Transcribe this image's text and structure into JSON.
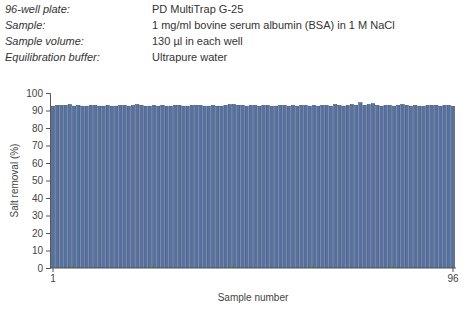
{
  "chart_data": {
    "type": "bar",
    "annotations": [
      {
        "label": "96-well plate:",
        "value": "PD MultiTrap G-25"
      },
      {
        "label": "Sample:",
        "value": "1 mg/ml bovine serum albumin (BSA) in 1 M NaCl"
      },
      {
        "label": "Sample volume:",
        "value": "130 µl in each well"
      },
      {
        "label": "Equilibration buffer:",
        "value": "Ultrapure water"
      }
    ],
    "x_label": "Sample number",
    "y_label": "Salt removal (%)",
    "categories": [
      "1",
      null,
      null,
      null,
      null,
      null,
      null,
      null,
      null,
      null,
      null,
      null,
      null,
      null,
      null,
      null,
      null,
      null,
      null,
      null,
      null,
      null,
      null,
      null,
      null,
      null,
      null,
      null,
      null,
      null,
      null,
      null,
      null,
      null,
      null,
      null,
      null,
      null,
      null,
      null,
      null,
      null,
      null,
      null,
      null,
      null,
      null,
      null,
      null,
      null,
      null,
      null,
      null,
      null,
      null,
      null,
      null,
      null,
      null,
      null,
      null,
      null,
      null,
      null,
      null,
      null,
      null,
      null,
      null,
      null,
      null,
      null,
      null,
      null,
      null,
      null,
      null,
      null,
      null,
      null,
      null,
      null,
      null,
      null,
      null,
      null,
      null,
      null,
      null,
      null,
      null,
      null,
      null,
      null,
      null,
      "96"
    ],
    "values": [
      92.5,
      93,
      93,
      93,
      93.5,
      92.5,
      93,
      92.5,
      92.5,
      93,
      93,
      92.5,
      92.5,
      93,
      92.5,
      92.5,
      93,
      93,
      92.5,
      93,
      93.5,
      93,
      92.5,
      92.5,
      93,
      92.5,
      93,
      92.5,
      92.5,
      93,
      93,
      92.5,
      92.5,
      93,
      93,
      93,
      92.5,
      92.5,
      93,
      92.5,
      92.5,
      93,
      93.5,
      93.5,
      93,
      93,
      92.5,
      93,
      93,
      92.5,
      93,
      93,
      92.5,
      92.5,
      93,
      93,
      92.5,
      93,
      92.5,
      93,
      93,
      92.5,
      93,
      92.5,
      93,
      93,
      92.5,
      93.5,
      93,
      92.5,
      93,
      93.5,
      93,
      94.5,
      93,
      93.5,
      94,
      93,
      92.5,
      93,
      93,
      92.5,
      93,
      93.5,
      93,
      92.5,
      93,
      92.5,
      92.5,
      93,
      93,
      93,
      92.5,
      93,
      93,
      92.5
    ],
    "color": "#5672a2",
    "ylim": [
      0,
      100
    ],
    "yticks": [
      0,
      10,
      20,
      30,
      40,
      50,
      60,
      70,
      80,
      90,
      100
    ],
    "grid": false
  }
}
